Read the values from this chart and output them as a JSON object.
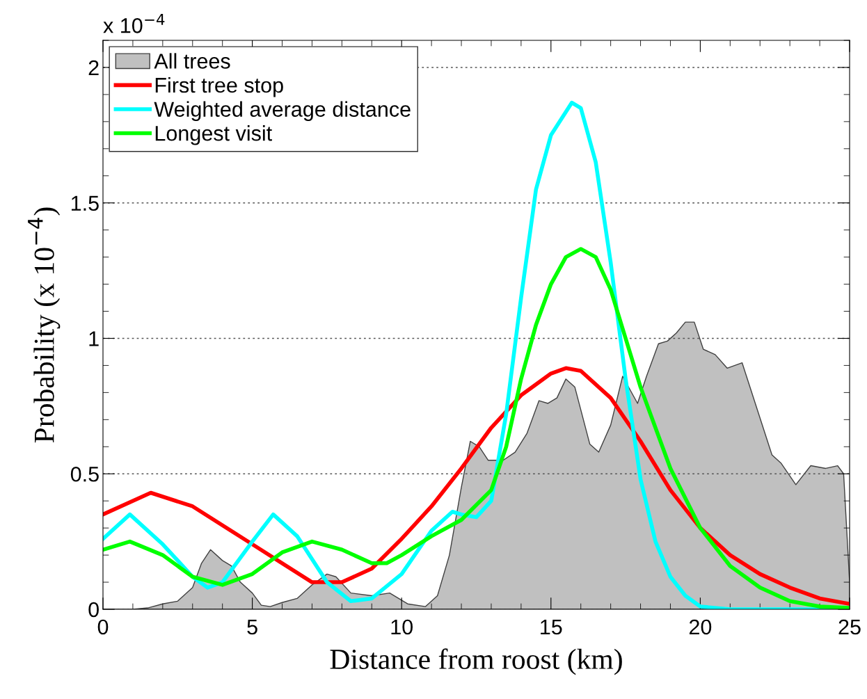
{
  "chart_data": {
    "type": "line",
    "xlabel": "Distance from roost (km)",
    "ylabel": "Probability (x 10$^{−4}$)",
    "annotations": [
      "x 10$^{−4}$"
    ],
    "xlim": [
      0,
      25
    ],
    "xticks": [
      0,
      5,
      10,
      15,
      20,
      25
    ],
    "ylim": [
      0,
      2.1
    ],
    "yticks": [
      0,
      0.5,
      1,
      1.5,
      2
    ],
    "grid": "y",
    "legend": "top left",
    "series": [
      {
        "name": "All trees",
        "type": "area",
        "color": "#c0c0c0",
        "x": [
          0,
          1,
          1.5,
          2,
          2.5,
          3,
          3.3,
          3.6,
          4,
          4.3,
          4.6,
          5,
          5.3,
          5.6,
          6,
          6.5,
          7,
          7.5,
          7.8,
          8.3,
          9,
          9.6,
          10.2,
          10.8,
          11.2,
          11.6,
          12,
          12.3,
          12.6,
          12.9,
          13.4,
          13.8,
          14.2,
          14.6,
          14.9,
          15.2,
          15.5,
          15.8,
          16.3,
          16.6,
          17,
          17.4,
          17.9,
          18.2,
          18.6,
          18.9,
          19.2,
          19.5,
          19.8,
          20.1,
          20.5,
          20.9,
          21.4,
          22.4,
          22.7,
          23.2,
          23.7,
          24.2,
          24.6,
          24.8,
          25
        ],
        "values": [
          0,
          0,
          0.005,
          0.02,
          0.03,
          0.08,
          0.17,
          0.22,
          0.18,
          0.16,
          0.1,
          0.06,
          0.015,
          0.01,
          0.025,
          0.04,
          0.09,
          0.13,
          0.12,
          0.06,
          0.05,
          0.06,
          0.02,
          0.01,
          0.05,
          0.2,
          0.45,
          0.62,
          0.6,
          0.55,
          0.55,
          0.58,
          0.65,
          0.77,
          0.76,
          0.78,
          0.85,
          0.82,
          0.61,
          0.58,
          0.68,
          0.86,
          0.76,
          0.86,
          0.98,
          0.99,
          1.02,
          1.06,
          1.06,
          0.96,
          0.94,
          0.89,
          0.91,
          0.57,
          0.54,
          0.46,
          0.53,
          0.52,
          0.53,
          0.5,
          0.1
        ]
      },
      {
        "name": "First tree stop",
        "color": "#ff0000",
        "x": [
          0,
          1.6,
          3,
          5,
          6,
          7,
          8,
          9,
          10,
          11,
          12,
          13,
          14,
          15,
          15.5,
          16,
          17,
          18,
          19,
          20,
          21,
          22,
          23,
          24,
          25
        ],
        "values": [
          0.35,
          0.43,
          0.38,
          0.24,
          0.17,
          0.1,
          0.1,
          0.15,
          0.26,
          0.38,
          0.52,
          0.67,
          0.79,
          0.87,
          0.89,
          0.88,
          0.78,
          0.62,
          0.44,
          0.3,
          0.2,
          0.13,
          0.08,
          0.04,
          0.02
        ]
      },
      {
        "name": "Weighted average distance",
        "color": "#00ffff",
        "x": [
          0,
          0.9,
          2,
          3,
          3.5,
          4,
          5,
          5.7,
          6.5,
          7.5,
          8.3,
          9,
          10,
          11,
          11.7,
          12,
          12.5,
          13,
          13.5,
          14,
          14.5,
          15,
          15.7,
          16,
          16.5,
          17,
          17.5,
          18,
          18.5,
          19,
          19.5,
          20,
          21,
          25
        ],
        "values": [
          0.26,
          0.35,
          0.24,
          0.12,
          0.08,
          0.1,
          0.25,
          0.35,
          0.27,
          0.1,
          0.03,
          0.04,
          0.13,
          0.29,
          0.36,
          0.35,
          0.34,
          0.4,
          0.72,
          1.15,
          1.55,
          1.75,
          1.87,
          1.85,
          1.65,
          1.28,
          0.85,
          0.48,
          0.25,
          0.12,
          0.05,
          0.01,
          0,
          0
        ]
      },
      {
        "name": "Longest visit",
        "color": "#00ff00",
        "x": [
          0,
          0.9,
          2,
          3,
          4,
          5,
          6,
          7,
          8,
          9,
          9.5,
          10,
          11,
          12,
          13,
          13.5,
          14,
          14.5,
          15,
          15.5,
          16,
          16.5,
          17,
          17.5,
          18,
          19,
          20,
          21,
          22,
          23,
          24,
          25
        ],
        "values": [
          0.22,
          0.25,
          0.2,
          0.12,
          0.09,
          0.13,
          0.21,
          0.25,
          0.22,
          0.17,
          0.17,
          0.2,
          0.27,
          0.33,
          0.44,
          0.6,
          0.85,
          1.05,
          1.2,
          1.3,
          1.33,
          1.3,
          1.18,
          1.0,
          0.82,
          0.52,
          0.3,
          0.16,
          0.08,
          0.03,
          0.01,
          0.005
        ]
      }
    ]
  }
}
